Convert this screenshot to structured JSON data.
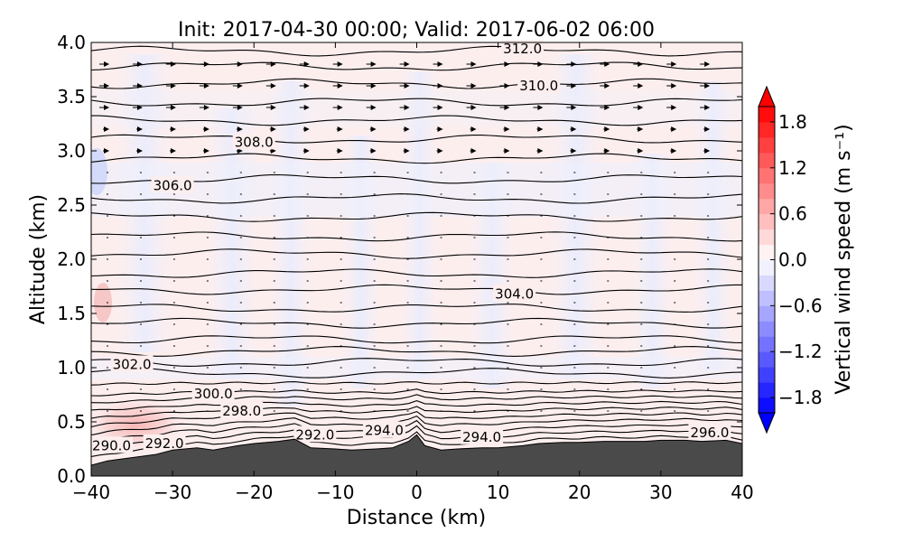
{
  "chart_data": {
    "type": "contour",
    "title": "Init: 2017-04-30 00:00; Valid: 2017-06-02 06:00",
    "xlabel": "Distance (km)",
    "ylabel": "Altitude (km)",
    "xlim": [
      -40,
      40
    ],
    "ylim": [
      0.0,
      4.0
    ],
    "x_ticks": [
      -40,
      -30,
      -20,
      -10,
      0,
      10,
      20,
      30,
      40
    ],
    "x_tick_labels": [
      "−40",
      "−30",
      "−20",
      "−10",
      "0",
      "10",
      "20",
      "30",
      "40"
    ],
    "y_ticks": [
      0.0,
      0.5,
      1.0,
      1.5,
      2.0,
      2.5,
      3.0,
      3.5,
      4.0
    ],
    "y_tick_labels": [
      "0.0",
      "0.5",
      "1.0",
      "1.5",
      "2.0",
      "2.5",
      "3.0",
      "3.5",
      "4.0"
    ],
    "colorbar": {
      "label": "Vertical wind speed (m s⁻¹)",
      "range": [
        -2.0,
        2.0
      ],
      "ticks": [
        1.8,
        1.2,
        0.6,
        0.0,
        -0.6,
        -1.2,
        -1.8
      ],
      "tick_labels": [
        "1.8",
        "1.2",
        "0.6",
        "0.0",
        "−0.6",
        "−1.2",
        "−1.8"
      ],
      "colormap": "bwr",
      "extend": "both"
    },
    "filled_field": "vertical wind speed, mostly within ±0.2 m s⁻¹; weak updraft near x=-35 km at 0.3-0.6 km",
    "theta_contour_labels": [
      {
        "x": -37.5,
        "y": 0.28,
        "text": "290.0"
      },
      {
        "x": -31.0,
        "y": 0.3,
        "text": "292.0"
      },
      {
        "x": -12.5,
        "y": 0.38,
        "text": "292.0"
      },
      {
        "x": -4.0,
        "y": 0.42,
        "text": "294.0"
      },
      {
        "x": 8.0,
        "y": 0.36,
        "text": "294.0"
      },
      {
        "x": 36.0,
        "y": 0.4,
        "text": "296.0"
      },
      {
        "x": -21.5,
        "y": 0.6,
        "text": "298.0"
      },
      {
        "x": -25.0,
        "y": 0.76,
        "text": "300.0"
      },
      {
        "x": -35.0,
        "y": 1.03,
        "text": "302.0"
      },
      {
        "x": 12.0,
        "y": 1.68,
        "text": "304.0"
      },
      {
        "x": -30.0,
        "y": 2.68,
        "text": "306.0"
      },
      {
        "x": -20.0,
        "y": 3.08,
        "text": "308.0"
      },
      {
        "x": 15.0,
        "y": 3.6,
        "text": "310.0"
      },
      {
        "x": 13.0,
        "y": 3.94,
        "text": "312.0"
      }
    ],
    "terrain_height_km": {
      "x": [
        -40,
        -38,
        -35,
        -32,
        -30,
        -27,
        -25,
        -22,
        -20,
        -17,
        -15,
        -13,
        -10,
        -8,
        -5,
        -3,
        -1,
        0,
        1,
        3,
        5,
        8,
        10,
        13,
        15,
        18,
        20,
        23,
        25,
        28,
        30,
        33,
        35,
        38,
        40
      ],
      "y": [
        0.1,
        0.14,
        0.17,
        0.2,
        0.24,
        0.26,
        0.24,
        0.28,
        0.3,
        0.32,
        0.34,
        0.26,
        0.25,
        0.24,
        0.25,
        0.26,
        0.32,
        0.38,
        0.28,
        0.24,
        0.25,
        0.26,
        0.26,
        0.28,
        0.3,
        0.31,
        0.31,
        0.32,
        0.32,
        0.32,
        0.33,
        0.33,
        0.32,
        0.33,
        0.3
      ]
    },
    "grid": false
  }
}
